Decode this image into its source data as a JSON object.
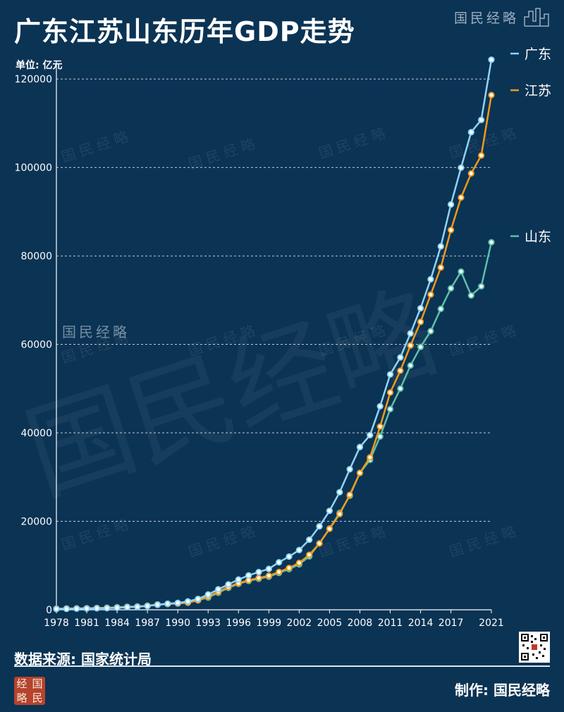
{
  "header": {
    "title": "广东江苏山东历年GDP走势",
    "unit": "单位: 亿元"
  },
  "brand": {
    "name": "国民经略",
    "seal_chars": [
      "经",
      "国",
      "略",
      "民"
    ]
  },
  "footer": {
    "source": "数据来源: 国家统计局",
    "made_by": "制作: 国民经略"
  },
  "colors": {
    "background": "#0b3354",
    "guangdong": "#8fd4f6",
    "jiangsu": "#f39a1b",
    "shandong": "#5cc0a8",
    "grid": "#ffffff"
  },
  "chart_data": {
    "type": "line",
    "title": "广东江苏山东历年GDP走势",
    "ylabel": "单位: 亿元",
    "xlabel": "",
    "x": [
      1978,
      1979,
      1980,
      1981,
      1982,
      1983,
      1984,
      1985,
      1986,
      1987,
      1988,
      1989,
      1990,
      1991,
      1992,
      1993,
      1994,
      1995,
      1996,
      1997,
      1998,
      1999,
      2000,
      2001,
      2002,
      2003,
      2004,
      2005,
      2006,
      2007,
      2008,
      2009,
      2010,
      2011,
      2012,
      2013,
      2014,
      2015,
      2016,
      2017,
      2018,
      2019,
      2020,
      2021
    ],
    "x_ticks": [
      1978,
      1981,
      1984,
      1987,
      1990,
      1993,
      1996,
      1999,
      2002,
      2005,
      2008,
      2011,
      2014,
      2017,
      2021
    ],
    "y_ticks": [
      0,
      20000,
      40000,
      60000,
      80000,
      100000,
      120000
    ],
    "ylim": [
      0,
      124000
    ],
    "grid": "horizontal dashed",
    "legend": "right, at line ends",
    "series": [
      {
        "name": "广东",
        "color": "#8fd4f6",
        "values": [
          186,
          209,
          250,
          290,
          340,
          368,
          459,
          577,
          668,
          847,
          1155,
          1381,
          1559,
          1893,
          2448,
          3469,
          4619,
          5734,
          6834,
          7774,
          8531,
          9250,
          10741,
          12039,
          13502,
          15845,
          18865,
          22366,
          26588,
          31777,
          36797,
          39483,
          46013,
          53210,
          57068,
          62475,
          68173,
          74732,
          82163,
          91649,
          99945,
          107987,
          110761,
          124370
        ]
      },
      {
        "name": "江苏",
        "color": "#f39a1b",
        "values": [
          249,
          298,
          320,
          350,
          390,
          437,
          518,
          652,
          744,
          922,
          1208,
          1321,
          1417,
          1601,
          2136,
          2998,
          4057,
          5155,
          6004,
          6680,
          7200,
          7698,
          8554,
          9457,
          10607,
          12443,
          15004,
          18306,
          21645,
          25988,
          30945,
          34457,
          41425,
          49110,
          54058,
          59753,
          65088,
          71255,
          77388,
          85870,
          93208,
          98656,
          102719,
          116364
        ]
      },
      {
        "name": "山东",
        "color": "#5cc0a8",
        "values": [
          225,
          251,
          292,
          346,
          395,
          459,
          582,
          681,
          742,
          892,
          1117,
          1293,
          1511,
          1810,
          2197,
          2770,
          3844,
          4953,
          5883,
          6537,
          7021,
          7493,
          8337,
          9195,
          10275,
          12078,
          15021,
          18366,
          21900,
          25776,
          30933,
          33896,
          39170,
          45362,
          50013,
          55230,
          59427,
          63002,
          68024,
          72678,
          76470,
          71067,
          73129,
          83096
        ]
      }
    ]
  }
}
